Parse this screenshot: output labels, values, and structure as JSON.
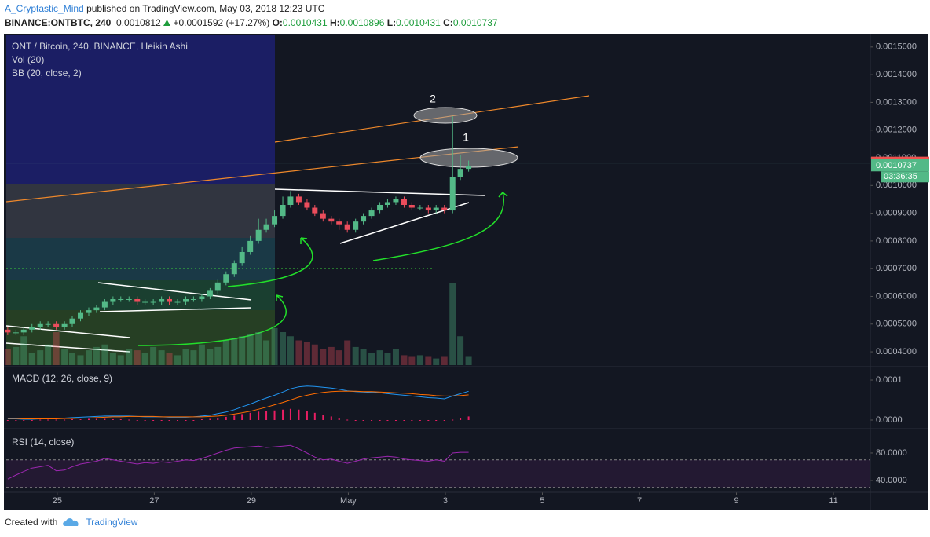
{
  "header": {
    "author": "A_Cryptastic_Mind",
    "published": "published on TradingView.com, May 03, 2018 12:23 UTC",
    "symbol": "BINANCE:ONTBTC, 240",
    "last": "0.0010812",
    "change": "+0.0001592 (+17.27%)",
    "ohlc": [
      {
        "key": "O:",
        "value": "0.0010431"
      },
      {
        "key": "H:",
        "value": "0.0010896"
      },
      {
        "key": "L:",
        "value": "0.0010431"
      },
      {
        "key": "C:",
        "value": "0.0010737"
      }
    ]
  },
  "chart_data": [
    {
      "type": "candlestick",
      "title": "ONT / Bitcoin, 240, BINANCE, Heikin Ashi",
      "overlay_label": "BB (20, close, 2)",
      "up_color": "#53b987",
      "down_color": "#eb4d5c",
      "x": [
        23.98,
        24.15,
        24.31,
        24.48,
        24.65,
        24.81,
        24.98,
        25.15,
        25.31,
        25.48,
        25.65,
        25.81,
        25.98,
        26.15,
        26.31,
        26.48,
        26.65,
        26.81,
        26.98,
        27.15,
        27.31,
        27.48,
        27.65,
        27.81,
        27.98,
        28.15,
        28.31,
        28.48,
        28.65,
        28.81,
        28.98,
        29.15,
        29.31,
        29.48,
        29.65,
        29.81,
        29.98,
        30.15,
        30.31,
        30.48,
        30.65,
        30.81,
        30.98,
        31.15,
        31.31,
        31.48,
        31.65,
        31.81,
        31.98,
        32.15,
        32.31,
        32.48,
        32.65,
        32.81,
        32.98,
        33.15,
        33.31,
        33.48
      ],
      "ohlc": [
        [
          0.00048,
          0.00049,
          0.00046,
          0.00047
        ],
        [
          0.00047,
          0.00048,
          0.00046,
          0.00047
        ],
        [
          0.00047,
          0.00049,
          0.00046,
          0.00048
        ],
        [
          0.00048,
          0.0005,
          0.00047,
          0.00049
        ],
        [
          0.00049,
          0.00051,
          0.00048,
          0.0005
        ],
        [
          0.0005,
          0.00051,
          0.00049,
          0.0005
        ],
        [
          0.0005,
          0.00051,
          0.00048,
          0.00049
        ],
        [
          0.00049,
          0.00051,
          0.00048,
          0.0005
        ],
        [
          0.0005,
          0.00053,
          0.00049,
          0.00052
        ],
        [
          0.00052,
          0.00055,
          0.00051,
          0.00054
        ],
        [
          0.00054,
          0.00056,
          0.00053,
          0.00055
        ],
        [
          0.00055,
          0.00057,
          0.00054,
          0.00056
        ],
        [
          0.00056,
          0.00059,
          0.00055,
          0.00058
        ],
        [
          0.00058,
          0.0006,
          0.00057,
          0.00059
        ],
        [
          0.00059,
          0.0006,
          0.00058,
          0.00059
        ],
        [
          0.00059,
          0.0006,
          0.00058,
          0.00059
        ],
        [
          0.00059,
          0.0006,
          0.00057,
          0.00058
        ],
        [
          0.00058,
          0.00059,
          0.00057,
          0.00058
        ],
        [
          0.00058,
          0.00059,
          0.00057,
          0.00058
        ],
        [
          0.00058,
          0.0006,
          0.00057,
          0.00059
        ],
        [
          0.00059,
          0.0006,
          0.00057,
          0.00058
        ],
        [
          0.00058,
          0.00059,
          0.00057,
          0.00058
        ],
        [
          0.00058,
          0.0006,
          0.00057,
          0.00059
        ],
        [
          0.00059,
          0.0006,
          0.00058,
          0.00059
        ],
        [
          0.00059,
          0.00061,
          0.00058,
          0.0006
        ],
        [
          0.0006,
          0.00063,
          0.00059,
          0.00062
        ],
        [
          0.00062,
          0.00066,
          0.00061,
          0.00065
        ],
        [
          0.00065,
          0.00069,
          0.00064,
          0.00068
        ],
        [
          0.00068,
          0.00073,
          0.00067,
          0.00072
        ],
        [
          0.00072,
          0.00078,
          0.00071,
          0.00076
        ],
        [
          0.00076,
          0.00082,
          0.00075,
          0.0008
        ],
        [
          0.0008,
          0.00088,
          0.00079,
          0.00084
        ],
        [
          0.00084,
          0.00088,
          0.00083,
          0.00086
        ],
        [
          0.00086,
          0.00091,
          0.00085,
          0.00089
        ],
        [
          0.00089,
          0.00096,
          0.00088,
          0.00093
        ],
        [
          0.00093,
          0.00098,
          0.00092,
          0.00096
        ],
        [
          0.00096,
          0.00097,
          0.00093,
          0.00094
        ],
        [
          0.00094,
          0.00095,
          0.00091,
          0.00092
        ],
        [
          0.00092,
          0.00093,
          0.00089,
          0.0009
        ],
        [
          0.0009,
          0.00091,
          0.00087,
          0.00088
        ],
        [
          0.00088,
          0.00089,
          0.00086,
          0.00087
        ],
        [
          0.00087,
          0.00088,
          0.00084,
          0.00086
        ],
        [
          0.00086,
          0.00087,
          0.00083,
          0.00084
        ],
        [
          0.00084,
          0.00088,
          0.00083,
          0.00087
        ],
        [
          0.00087,
          0.0009,
          0.00086,
          0.00089
        ],
        [
          0.00089,
          0.00092,
          0.00088,
          0.00091
        ],
        [
          0.00091,
          0.00094,
          0.0009,
          0.00093
        ],
        [
          0.00093,
          0.00095,
          0.00092,
          0.00094
        ],
        [
          0.00094,
          0.00096,
          0.00093,
          0.00095
        ],
        [
          0.00095,
          0.00096,
          0.00092,
          0.00093
        ],
        [
          0.00093,
          0.00094,
          0.00091,
          0.00092
        ],
        [
          0.00092,
          0.00093,
          0.00091,
          0.00092
        ],
        [
          0.00092,
          0.00093,
          0.0009,
          0.00091
        ],
        [
          0.00091,
          0.00093,
          0.0009,
          0.00092
        ],
        [
          0.00092,
          0.00093,
          0.0009,
          0.00091
        ],
        [
          0.00091,
          0.00125,
          0.0009,
          0.00103
        ],
        [
          0.00103,
          0.00111,
          0.00102,
          0.00106
        ],
        [
          0.00106,
          0.00109,
          0.00105,
          0.00107
        ]
      ],
      "volume": {
        "name": "Vol (20)",
        "values": [
          20,
          22,
          35,
          15,
          18,
          25,
          40,
          20,
          15,
          12,
          18,
          22,
          25,
          15,
          12,
          20,
          18,
          15,
          22,
          18,
          15,
          12,
          20,
          18,
          25,
          20,
          22,
          30,
          32,
          35,
          38,
          40,
          30,
          45,
          40,
          35,
          30,
          28,
          25,
          20,
          22,
          18,
          30,
          22,
          20,
          15,
          18,
          15,
          20,
          12,
          10,
          12,
          10,
          8,
          10,
          100,
          35,
          10
        ]
      },
      "xlim": [
        23.95,
        41.76
      ],
      "xticks": [
        25,
        27,
        29,
        {
          "value": 31,
          "label": "May"
        },
        {
          "value": 33,
          "label": "3"
        },
        {
          "value": 35,
          "label": "5"
        },
        {
          "value": 37,
          "label": "7"
        },
        {
          "value": 39,
          "label": "9"
        },
        {
          "value": 41,
          "label": "11"
        }
      ],
      "ylim": [
        0.000352,
        0.001542
      ],
      "yticks": [
        {
          "value": 0.0004,
          "label": "0.0004000"
        },
        {
          "value": 0.0005,
          "label": "0.0005000"
        },
        {
          "value": 0.0006,
          "label": "0.0006000"
        },
        {
          "value": 0.0007,
          "label": "0.0007000"
        },
        {
          "value": 0.0008,
          "label": "0.0008000"
        },
        {
          "value": 0.0009,
          "label": "0.0009000"
        },
        {
          "value": 0.001,
          "label": "0.0010000"
        },
        {
          "value": 0.0011,
          "label": "0.0011000"
        },
        {
          "value": 0.0012,
          "label": "0.0012000"
        },
        {
          "value": 0.0013,
          "label": "0.0013000"
        },
        {
          "value": 0.0014,
          "label": "0.0014000"
        },
        {
          "value": 0.0015,
          "label": "0.0015000"
        }
      ],
      "price_markers": [
        {
          "value": 0.0010812,
          "color": "#f05350"
        },
        {
          "value": 0.0010737,
          "color": "#53b987"
        }
      ],
      "countdown": "03:36:35",
      "annotations": [
        "1",
        "2"
      ]
    },
    {
      "type": "line",
      "title": "MACD (12, 26, close, 9)",
      "series": [
        {
          "color": "#2196f3",
          "values": [
            3e-06,
            3e-06,
            2e-06,
            2e-06,
            3e-06,
            4e-06,
            4e-06,
            5e-06,
            6e-06,
            7e-06,
            8e-06,
            9e-06,
            1e-05,
            1e-05,
            1e-05,
            1e-05,
            9e-06,
            8e-06,
            8e-06,
            8e-06,
            7e-06,
            7e-06,
            7e-06,
            8e-06,
            1e-05,
            1.2e-05,
            1.6e-05,
            2e-05,
            2.6e-05,
            3.3e-05,
            4e-05,
            4.8e-05,
            5.5e-05,
            6.2e-05,
            7e-05,
            7.8e-05,
            8.3e-05,
            8.5e-05,
            8.4e-05,
            8.2e-05,
            8e-05,
            7.7e-05,
            7.3e-05,
            7.1e-05,
            7e-05,
            6.9e-05,
            6.8e-05,
            6.6e-05,
            6.4e-05,
            6.2e-05,
            6e-05,
            5.8e-05,
            5.6e-05,
            5.5e-05,
            5.3e-05,
            6e-05,
            6.6e-05,
            7.2e-05
          ]
        },
        {
          "color": "#ff6d00",
          "values": [
            4e-06,
            4e-06,
            3e-06,
            3e-06,
            3e-06,
            3e-06,
            3e-06,
            4e-06,
            4e-06,
            5e-06,
            5e-06,
            6e-06,
            7e-06,
            8e-06,
            8e-06,
            9e-06,
            9e-06,
            9e-06,
            9e-06,
            8e-06,
            8e-06,
            8e-06,
            8e-06,
            8e-06,
            8e-06,
            9e-06,
            1e-05,
            1.2e-05,
            1.5e-05,
            1.8e-05,
            2.2e-05,
            2.7e-05,
            3.2e-05,
            3.8e-05,
            4.4e-05,
            5e-05,
            5.7e-05,
            6.2e-05,
            6.6e-05,
            6.9e-05,
            7.1e-05,
            7.2e-05,
            7.2e-05,
            7.2e-05,
            7.1e-05,
            7.1e-05,
            7e-05,
            6.9e-05,
            6.8e-05,
            6.7e-05,
            6.6e-05,
            6.4e-05,
            6.3e-05,
            6.1e-05,
            6e-05,
            6e-05,
            6.1e-05,
            6.3e-05
          ]
        }
      ],
      "histogram": {
        "color": "#e91e63",
        "values": [
          0,
          0,
          0,
          0,
          1e-06,
          1e-06,
          1e-06,
          1e-06,
          2e-06,
          2e-06,
          3e-06,
          3e-06,
          3e-06,
          2e-06,
          2e-06,
          1e-06,
          0,
          0,
          0,
          0,
          0,
          0,
          0,
          0,
          2e-06,
          3e-06,
          6e-06,
          8e-06,
          1.1e-05,
          1.5e-05,
          1.8e-05,
          2.1e-05,
          2.3e-05,
          2.4e-05,
          2.6e-05,
          2.8e-05,
          2.6e-05,
          2.3e-05,
          1.8e-05,
          1.3e-05,
          9e-06,
          5e-06,
          1e-06,
          0,
          0,
          0,
          0,
          0,
          0,
          0,
          0,
          0,
          0,
          0,
          0,
          1e-06,
          5e-06,
          9e-06
        ]
      },
      "ylim": [
        -1.96e-05,
        0.0001275
      ],
      "yticks": [
        {
          "value": 0,
          "label": "0.0000"
        },
        0.0001
      ]
    },
    {
      "type": "line",
      "title": "RSI (14, close)",
      "series": [
        {
          "color": "#9c27b0",
          "values": [
            42,
            48,
            53,
            58,
            60,
            62,
            54,
            55,
            60,
            64,
            66,
            68,
            72,
            70,
            68,
            66,
            64,
            66,
            65,
            67,
            66,
            68,
            70,
            69,
            72,
            76,
            80,
            84,
            87,
            88,
            89,
            90,
            88,
            89,
            90,
            91,
            86,
            80,
            74,
            70,
            71,
            68,
            65,
            68,
            71,
            73,
            74,
            75,
            74,
            71,
            70,
            69,
            68,
            70,
            68,
            80,
            81,
            81
          ]
        }
      ],
      "band": [
        30,
        70
      ],
      "band_color": "#9c27b0",
      "ylim": [
        25.1,
        113.1
      ],
      "yticks": [
        {
          "value": 40,
          "label": "40.0000"
        },
        {
          "value": 80,
          "label": "80.0000"
        }
      ]
    }
  ],
  "footer": {
    "created_with": "Created with",
    "brand": "TradingView"
  }
}
